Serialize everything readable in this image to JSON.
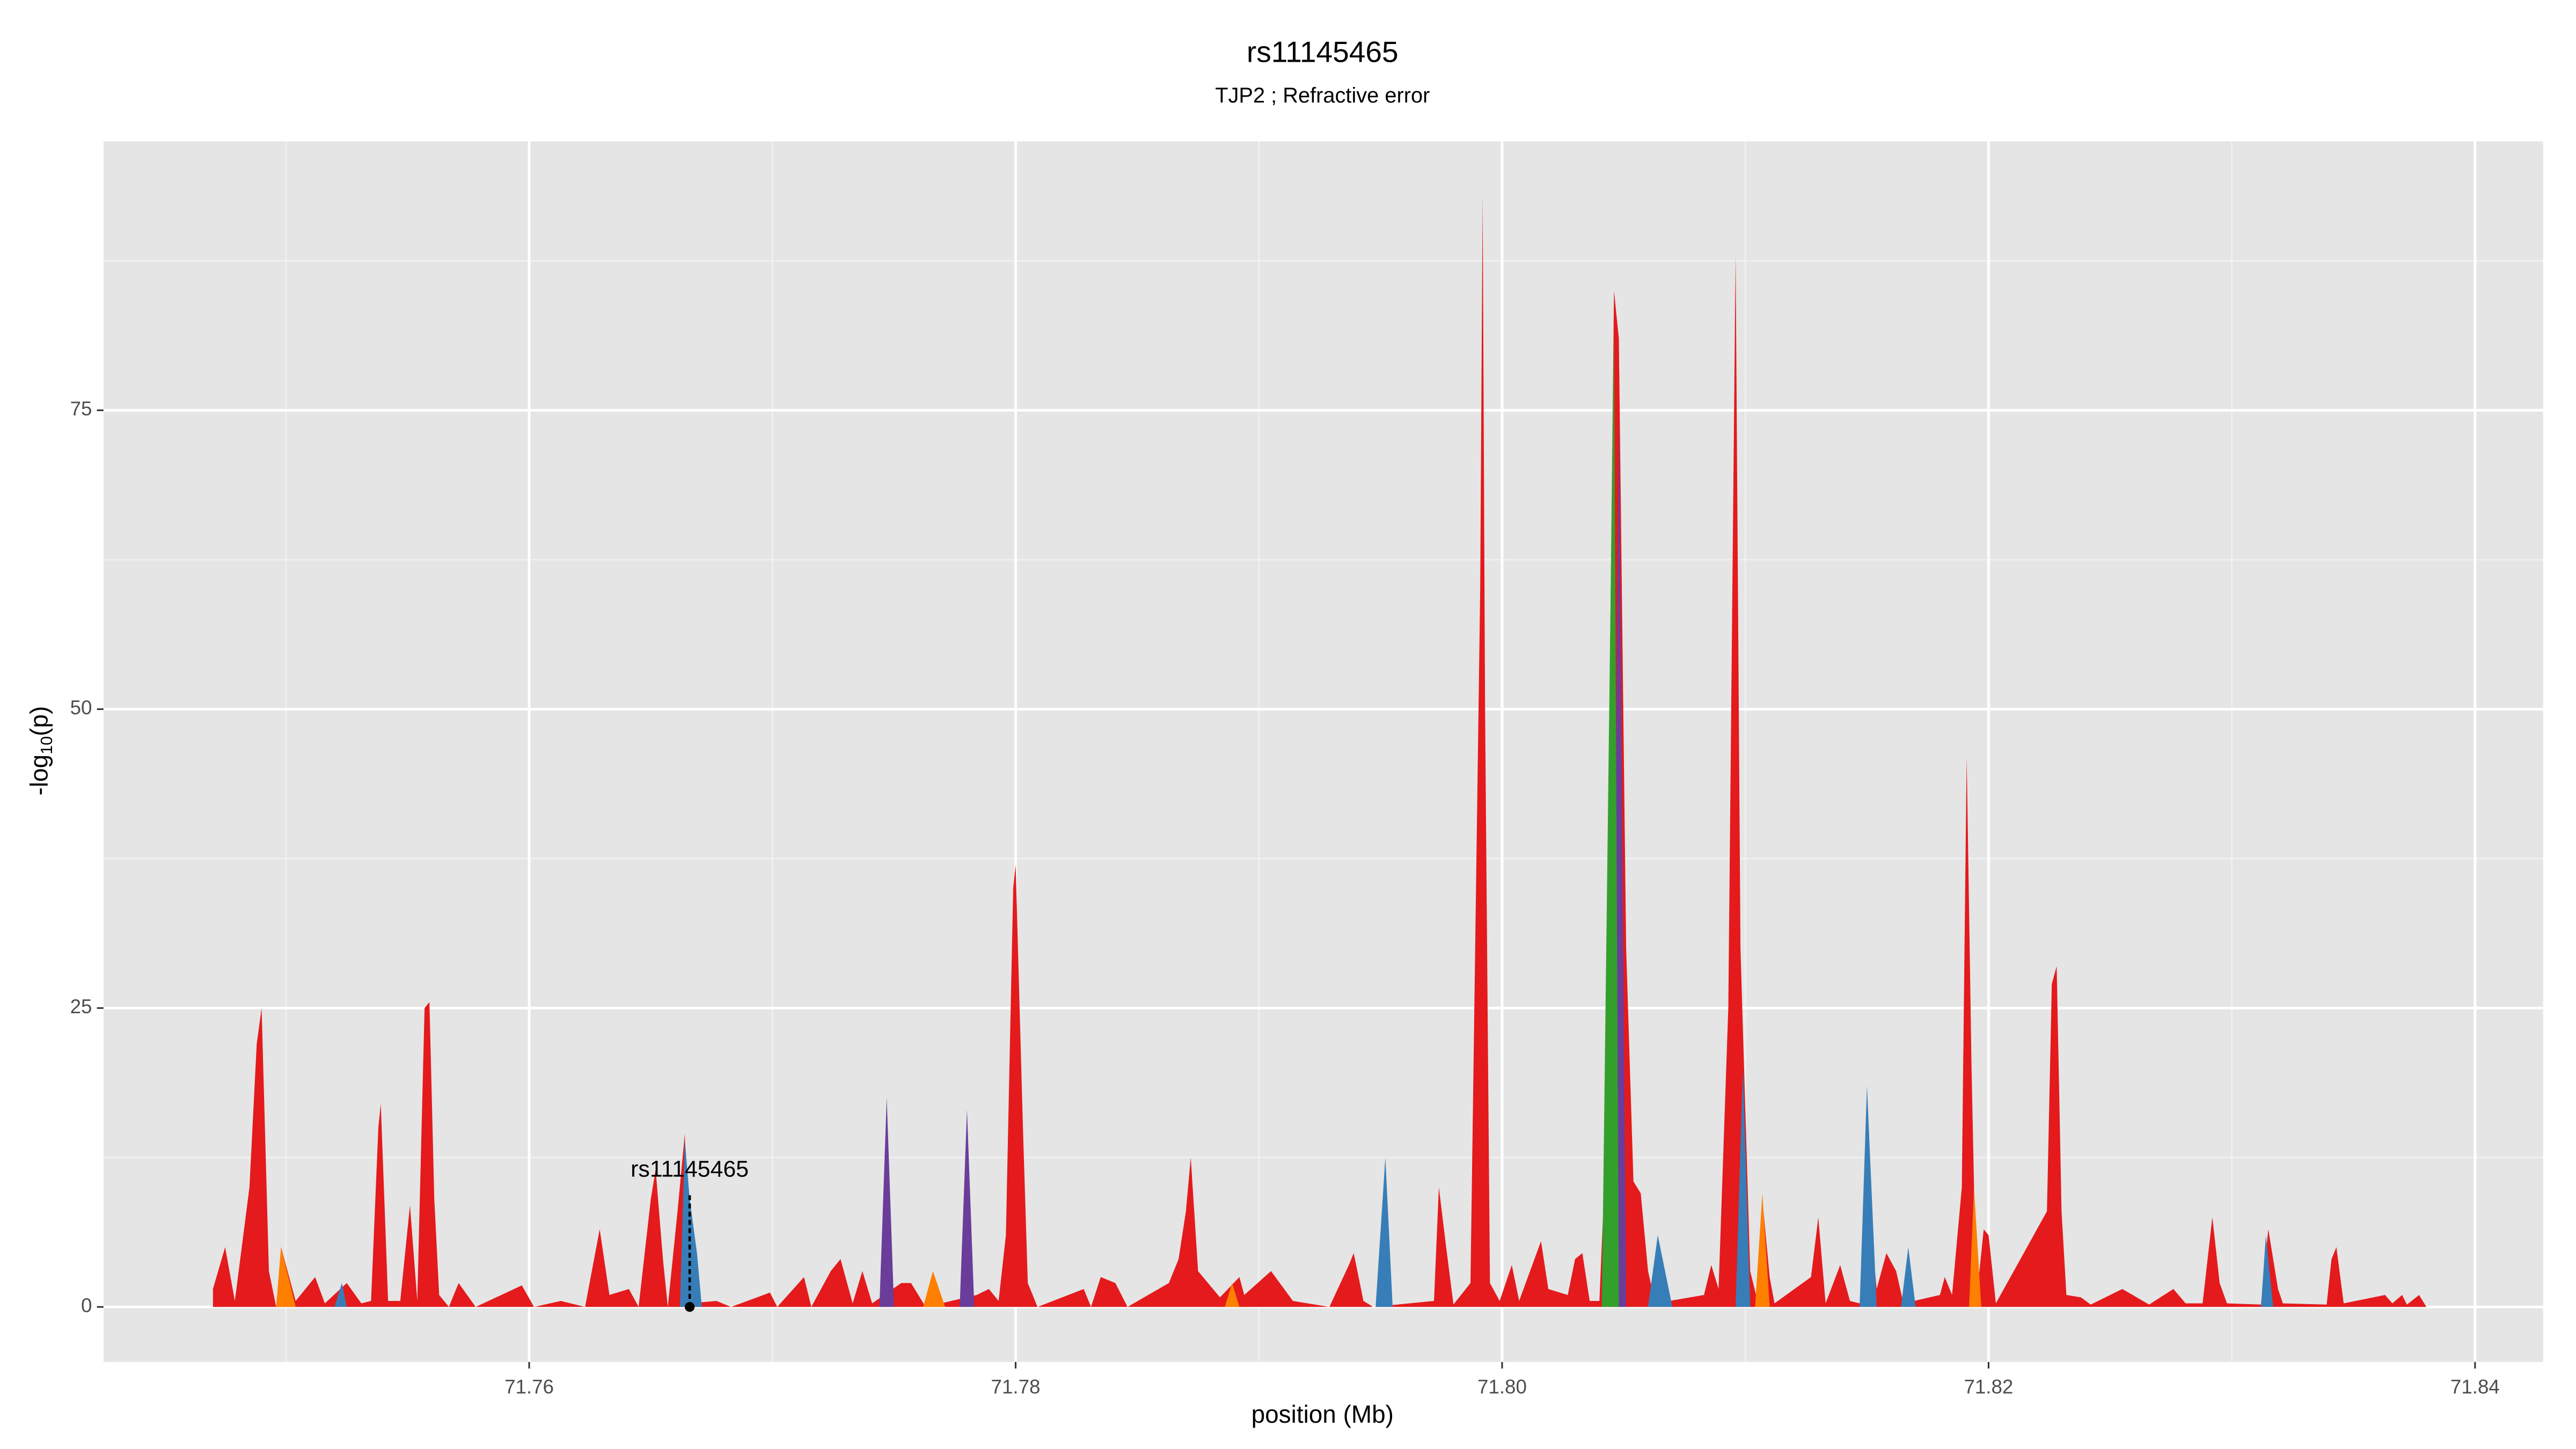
{
  "chart_data": {
    "type": "area",
    "title": "rs11145465",
    "subtitle": "TJP2 ; Refractive error",
    "xlabel": "position (Mb)",
    "ylabel": [
      "-log",
      "10",
      "(p)"
    ],
    "xlim": [
      71.7425,
      71.8428
    ],
    "ylim": [
      -4.6,
      97.5
    ],
    "xticks": [
      {
        "value": 71.76,
        "label": "71.76"
      },
      {
        "value": 71.78,
        "label": "71.78"
      },
      {
        "value": 71.8,
        "label": "71.80"
      },
      {
        "value": 71.82,
        "label": "71.82"
      },
      {
        "value": 71.84,
        "label": "71.84"
      }
    ],
    "yticks": [
      0,
      25,
      50,
      75
    ],
    "x_minor_grid": [
      71.75,
      71.77,
      71.79,
      71.81,
      71.83
    ],
    "y_minor_grid": [
      12.5,
      37.5,
      62.5,
      87.5
    ],
    "grid": true,
    "background": "#e5e5e5",
    "series": [
      {
        "color": "#e41a1c",
        "x": [
          71.747,
          71.7475,
          71.7479,
          71.7485,
          71.7488,
          71.749,
          71.7493,
          71.7496,
          71.7498,
          71.7504,
          71.7512,
          71.7516,
          71.7525,
          71.7531,
          71.7535,
          71.7538,
          71.7539,
          71.7542,
          71.7547,
          71.7551,
          71.7554,
          71.7557,
          71.7559,
          71.7561,
          71.7563,
          71.7567,
          71.7571,
          71.7578,
          71.7597,
          71.7602,
          71.7613,
          71.7623,
          71.7629,
          71.7633,
          71.7641,
          71.7645,
          71.765,
          71.7652,
          71.7655,
          71.7657,
          71.7661,
          71.7664,
          71.7666,
          71.7677,
          71.7683,
          71.7699,
          71.7702,
          71.7713,
          71.7716,
          71.7724,
          71.7728,
          71.7733,
          71.7737,
          71.7741,
          71.7753,
          71.7757,
          71.7763,
          71.7784,
          71.7789,
          71.7793,
          71.7796,
          71.7799,
          71.78,
          71.7803,
          71.7805,
          71.7809,
          71.7828,
          71.7831,
          71.7835,
          71.7841,
          71.7846,
          71.7863,
          71.7867,
          71.787,
          71.7872,
          71.7875,
          71.7884,
          71.7892,
          71.7894,
          71.7905,
          71.7914,
          71.7929,
          71.7937,
          71.7939,
          71.7943,
          71.7947,
          71.7972,
          71.7974,
          71.7977,
          71.798,
          71.7987,
          71.7991,
          71.7992,
          71.7993,
          71.7995,
          71.7999,
          71.8004,
          71.8007,
          71.8016,
          71.8019,
          71.8027,
          71.803,
          71.8033,
          71.8036,
          71.804,
          71.8042,
          71.8046,
          71.8048,
          71.8051,
          71.8054,
          71.8057,
          71.806,
          71.8063,
          71.8083,
          71.8086,
          71.8089,
          71.8093,
          71.8096,
          71.8098,
          71.8102,
          71.8105,
          71.8107,
          71.811,
          71.8112,
          71.8127,
          71.813,
          71.8133,
          71.8139,
          71.8143,
          71.8147,
          71.815,
          71.8154,
          71.8158,
          71.8162,
          71.8165,
          71.818,
          71.8182,
          71.8185,
          71.8189,
          71.8191,
          71.8193,
          71.8195,
          71.8198,
          71.82,
          71.8203,
          71.8224,
          71.8226,
          71.8228,
          71.823,
          71.8232,
          71.8238,
          71.8242,
          71.8255,
          71.8266,
          71.8276,
          71.8281,
          71.8288,
          71.8292,
          71.8295,
          71.8298,
          71.8312,
          71.8315,
          71.8319,
          71.8321,
          71.8339,
          71.8341,
          71.8343,
          71.8346,
          71.8363,
          71.8366,
          71.837,
          71.8372,
          71.8377,
          71.838
        ],
        "values": [
          1.5,
          5,
          0.5,
          10,
          22,
          25,
          3,
          0,
          5,
          0.5,
          2.5,
          0.3,
          2,
          0.3,
          0.5,
          15,
          17,
          0.5,
          0.5,
          8.5,
          0.5,
          25,
          25.5,
          9,
          1,
          0,
          2,
          0,
          1.8,
          0,
          0.5,
          0,
          6.5,
          1,
          1.5,
          0,
          9,
          11.5,
          4,
          0,
          8,
          14.5,
          0.3,
          0.5,
          0,
          1.2,
          0,
          2.5,
          0,
          3,
          4,
          0.3,
          3,
          0.3,
          2,
          2,
          0,
          1,
          1.5,
          0.5,
          6,
          35,
          37,
          15,
          2,
          0,
          1.5,
          0,
          2.5,
          2,
          0,
          2,
          4,
          8,
          12.5,
          3,
          0.8,
          2.5,
          1,
          3,
          0.5,
          0,
          3.5,
          4.5,
          0.5,
          0,
          0.5,
          10,
          5,
          0.2,
          2,
          60,
          93,
          50,
          2,
          0.5,
          3.5,
          0.5,
          5.5,
          1.5,
          1,
          4,
          4.5,
          0.5,
          0.5,
          10,
          85,
          81,
          30,
          10.5,
          9.5,
          3,
          0.3,
          1,
          3.5,
          1.5,
          25,
          88,
          30,
          3,
          0.5,
          9,
          2.5,
          0.3,
          2.5,
          7.5,
          0.3,
          3.5,
          0.5,
          0.3,
          10,
          1.5,
          4.5,
          3,
          0.3,
          1,
          2.5,
          1,
          10,
          46,
          20,
          0.5,
          6.5,
          6,
          0.3,
          8,
          27,
          28.5,
          8,
          1,
          0.8,
          0.2,
          1.5,
          0.2,
          1.5,
          0.3,
          0.3,
          7.5,
          2,
          0.3,
          0.2,
          6.5,
          1.5,
          0.3,
          0.2,
          4,
          5,
          0.3,
          1,
          0.3,
          1,
          0.2,
          1,
          0
        ]
      },
      {
        "color": "#377eb8",
        "x": [
          71.752,
          71.7523,
          71.7525,
          71.7662,
          71.7664,
          71.7666,
          71.7669,
          71.7671,
          71.7948,
          71.7952,
          71.7955,
          71.806,
          71.8064,
          71.807,
          71.8096,
          71.8099,
          71.8102,
          71.8147,
          71.815,
          71.8154,
          71.8164,
          71.8167,
          71.817,
          71.8312,
          71.8314,
          71.8317
        ],
        "values": [
          0,
          2,
          0,
          0,
          14,
          9,
          4.5,
          0,
          0,
          12.5,
          0,
          0,
          6,
          0,
          0,
          20,
          0,
          0,
          18.5,
          0,
          0,
          5,
          0,
          0,
          6,
          0
        ]
      },
      {
        "color": "#ff7f00",
        "x": [
          71.7496,
          71.7498,
          71.7504,
          71.7762,
          71.7766,
          71.7771,
          71.7886,
          71.7889,
          71.7892,
          71.8104,
          71.8107,
          71.811,
          71.8192,
          71.8194,
          71.8197
        ],
        "values": [
          0,
          5,
          0,
          0,
          3,
          0,
          0,
          2,
          0,
          0,
          9.5,
          0,
          0,
          10,
          0
        ]
      },
      {
        "color": "#6a3d9a",
        "x": [
          71.7744,
          71.7747,
          71.775,
          71.7777,
          71.778,
          71.7783,
          71.8045,
          71.8048,
          71.8051
        ],
        "values": [
          0,
          17.5,
          0,
          0,
          16.5,
          0,
          0,
          75,
          0
        ]
      },
      {
        "color": "#33a02c",
        "x": [
          71.8041,
          71.8046,
          71.8048
        ],
        "values": [
          0,
          82,
          0
        ]
      }
    ],
    "annotation": {
      "label": "rs11145465",
      "x": 71.7666,
      "y": 0,
      "label_y": 11.4
    }
  }
}
